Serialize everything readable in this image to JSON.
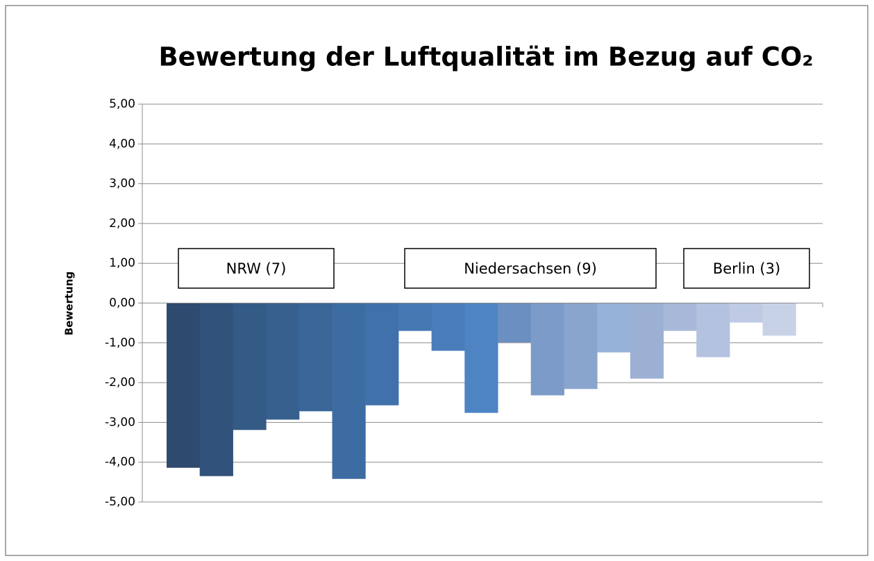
{
  "chart_data": {
    "type": "bar",
    "title": "Bewertung der Luftqualität im Bezug auf CO₂",
    "y_label": "Bewertung",
    "annotations": [
      "NRW (7)",
      "Niedersachsen (9)",
      "Berlin (3)"
    ],
    "categories": [
      null,
      null,
      null,
      null,
      null,
      null,
      null,
      null,
      null,
      null,
      null,
      null,
      null,
      null,
      null,
      null,
      null,
      null,
      null
    ],
    "values": [
      -4.14,
      -4.35,
      -3.19,
      -2.93,
      -2.72,
      -4.42,
      -2.57,
      -0.7,
      -1.2,
      -2.76,
      -0.99,
      -2.32,
      -2.16,
      -1.24,
      -1.9,
      -0.7,
      -1.36,
      -0.49,
      -0.82
    ],
    "colors": [
      "#2e4a6e",
      "#31527a",
      "#345a86",
      "#37608f",
      "#3a6698",
      "#3d6ca2",
      "#4171aa",
      "#4678b4",
      "#4a7dbb",
      "#4e84c4",
      "#6a8fc0",
      "#7c9bc8",
      "#8aa5cd",
      "#96b2d8",
      "#9cb0d4",
      "#a8b8d8",
      "#b3c2df",
      "#bfcbe5",
      "#c8d2e7"
    ],
    "ylim": [
      -5,
      5
    ],
    "yticks": [
      {
        "value": 5,
        "label": "5,00"
      },
      {
        "value": 4,
        "label": "4,00"
      },
      {
        "value": 3,
        "label": "3,00"
      },
      {
        "value": 2,
        "label": "2,00"
      },
      {
        "value": 1,
        "label": "1,00"
      },
      {
        "value": 0,
        "label": "0,00"
      },
      {
        "value": -1,
        "label": "-1,00"
      },
      {
        "value": -2,
        "label": "-2,00"
      },
      {
        "value": -3,
        "label": "-3,00"
      },
      {
        "value": -4,
        "label": "-4,00"
      },
      {
        "value": -5,
        "label": "-5,00"
      }
    ],
    "grid": true
  }
}
